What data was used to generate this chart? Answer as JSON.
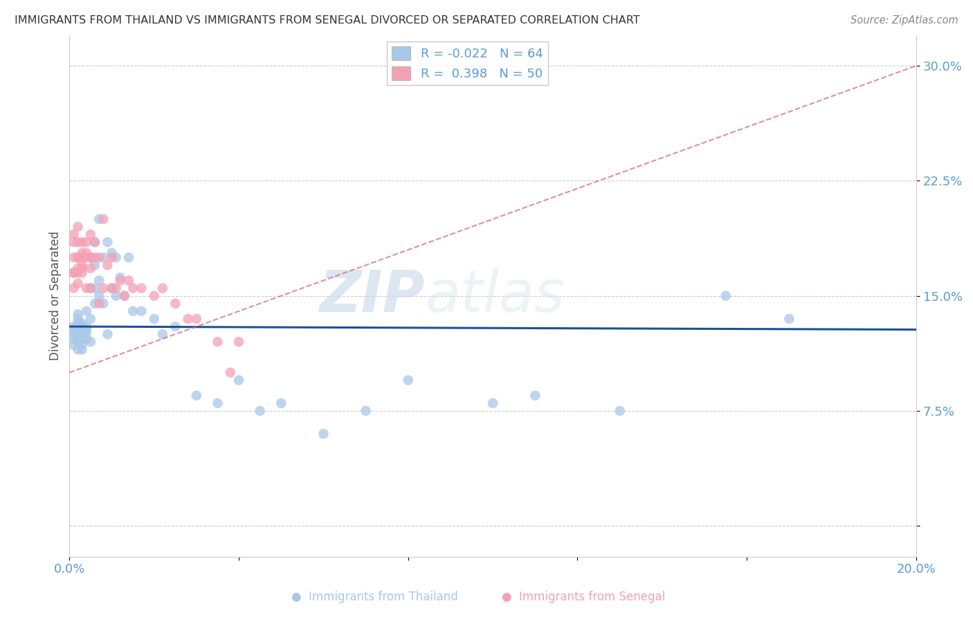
{
  "title": "IMMIGRANTS FROM THAILAND VS IMMIGRANTS FROM SENEGAL DIVORCED OR SEPARATED CORRELATION CHART",
  "source": "Source: ZipAtlas.com",
  "ylabel": "Divorced or Separated",
  "xlim": [
    0.0,
    0.2
  ],
  "ylim": [
    -0.02,
    0.32
  ],
  "thailand_color": "#a8c8e8",
  "senegal_color": "#f4a0b5",
  "thailand_line_color": "#1a50a0",
  "senegal_line_color": "#d06070",
  "thailand_R": "-0.022",
  "thailand_N": "64",
  "senegal_R": "0.398",
  "senegal_N": "50",
  "watermark_zip": "ZIP",
  "watermark_atlas": "atlas",
  "thailand_x": [
    0.001,
    0.001,
    0.001,
    0.001,
    0.001,
    0.002,
    0.002,
    0.002,
    0.002,
    0.002,
    0.002,
    0.002,
    0.003,
    0.003,
    0.003,
    0.003,
    0.003,
    0.003,
    0.003,
    0.004,
    0.004,
    0.004,
    0.004,
    0.004,
    0.005,
    0.005,
    0.005,
    0.005,
    0.006,
    0.006,
    0.006,
    0.006,
    0.007,
    0.007,
    0.007,
    0.008,
    0.008,
    0.009,
    0.009,
    0.01,
    0.01,
    0.011,
    0.011,
    0.012,
    0.013,
    0.014,
    0.015,
    0.017,
    0.02,
    0.022,
    0.025,
    0.03,
    0.035,
    0.04,
    0.045,
    0.05,
    0.06,
    0.07,
    0.08,
    0.1,
    0.11,
    0.13,
    0.155,
    0.17
  ],
  "thailand_y": [
    0.128,
    0.125,
    0.118,
    0.13,
    0.122,
    0.132,
    0.128,
    0.125,
    0.12,
    0.115,
    0.135,
    0.138,
    0.13,
    0.126,
    0.122,
    0.128,
    0.132,
    0.118,
    0.115,
    0.13,
    0.126,
    0.14,
    0.122,
    0.128,
    0.175,
    0.155,
    0.135,
    0.12,
    0.185,
    0.17,
    0.155,
    0.145,
    0.2,
    0.16,
    0.15,
    0.175,
    0.145,
    0.185,
    0.125,
    0.178,
    0.155,
    0.175,
    0.15,
    0.162,
    0.15,
    0.175,
    0.14,
    0.14,
    0.135,
    0.125,
    0.13,
    0.085,
    0.08,
    0.095,
    0.075,
    0.08,
    0.06,
    0.075,
    0.095,
    0.08,
    0.085,
    0.075,
    0.15,
    0.135
  ],
  "senegal_x": [
    0.001,
    0.001,
    0.001,
    0.001,
    0.001,
    0.001,
    0.002,
    0.002,
    0.002,
    0.002,
    0.002,
    0.002,
    0.002,
    0.003,
    0.003,
    0.003,
    0.003,
    0.003,
    0.003,
    0.004,
    0.004,
    0.004,
    0.004,
    0.005,
    0.005,
    0.005,
    0.005,
    0.006,
    0.006,
    0.007,
    0.007,
    0.008,
    0.008,
    0.009,
    0.01,
    0.01,
    0.011,
    0.012,
    0.013,
    0.014,
    0.015,
    0.017,
    0.02,
    0.022,
    0.025,
    0.028,
    0.03,
    0.035,
    0.038,
    0.04
  ],
  "senegal_y": [
    0.175,
    0.165,
    0.19,
    0.185,
    0.165,
    0.155,
    0.185,
    0.195,
    0.175,
    0.165,
    0.158,
    0.175,
    0.168,
    0.178,
    0.168,
    0.175,
    0.17,
    0.185,
    0.165,
    0.178,
    0.175,
    0.155,
    0.185,
    0.19,
    0.175,
    0.168,
    0.155,
    0.185,
    0.175,
    0.175,
    0.145,
    0.2,
    0.155,
    0.17,
    0.155,
    0.175,
    0.155,
    0.16,
    0.15,
    0.16,
    0.155,
    0.155,
    0.15,
    0.155,
    0.145,
    0.135,
    0.135,
    0.12,
    0.1,
    0.12
  ],
  "thailand_line_x": [
    0.0,
    0.2
  ],
  "thailand_line_y": [
    0.13,
    0.128
  ],
  "senegal_line_x": [
    0.0,
    0.2
  ],
  "senegal_line_y": [
    0.1,
    0.3
  ]
}
